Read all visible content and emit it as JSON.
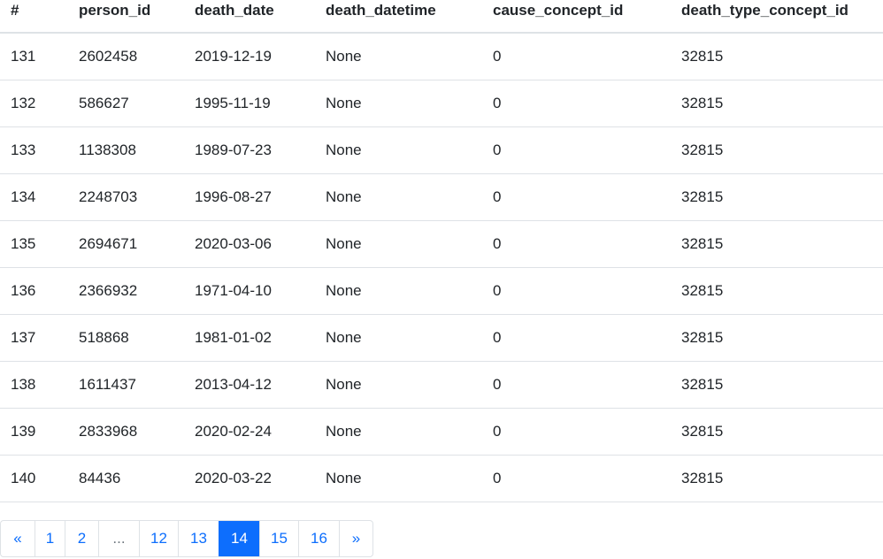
{
  "table": {
    "headers": [
      "#",
      "person_id",
      "death_date",
      "death_datetime",
      "cause_concept_id",
      "death_type_concept_id"
    ],
    "rows": [
      [
        "131",
        "2602458",
        "2019-12-19",
        "None",
        "0",
        "32815"
      ],
      [
        "132",
        "586627",
        "1995-11-19",
        "None",
        "0",
        "32815"
      ],
      [
        "133",
        "1138308",
        "1989-07-23",
        "None",
        "0",
        "32815"
      ],
      [
        "134",
        "2248703",
        "1996-08-27",
        "None",
        "0",
        "32815"
      ],
      [
        "135",
        "2694671",
        "2020-03-06",
        "None",
        "0",
        "32815"
      ],
      [
        "136",
        "2366932",
        "1971-04-10",
        "None",
        "0",
        "32815"
      ],
      [
        "137",
        "518868",
        "1981-01-02",
        "None",
        "0",
        "32815"
      ],
      [
        "138",
        "1611437",
        "2013-04-12",
        "None",
        "0",
        "32815"
      ],
      [
        "139",
        "2833968",
        "2020-02-24",
        "None",
        "0",
        "32815"
      ],
      [
        "140",
        "84436",
        "2020-03-22",
        "None",
        "0",
        "32815"
      ]
    ]
  },
  "pagination": {
    "items": [
      {
        "label": "«",
        "name": "page-first-button",
        "state": "normal"
      },
      {
        "label": "1",
        "name": "page-1-button",
        "state": "normal"
      },
      {
        "label": "2",
        "name": "page-2-button",
        "state": "normal"
      },
      {
        "label": "...",
        "name": "page-ellipsis",
        "state": "disabled"
      },
      {
        "label": "12",
        "name": "page-12-button",
        "state": "normal"
      },
      {
        "label": "13",
        "name": "page-13-button",
        "state": "normal"
      },
      {
        "label": "14",
        "name": "page-14-button",
        "state": "active"
      },
      {
        "label": "15",
        "name": "page-15-button",
        "state": "normal"
      },
      {
        "label": "16",
        "name": "page-16-button",
        "state": "normal"
      },
      {
        "label": "»",
        "name": "page-last-button",
        "state": "normal"
      }
    ],
    "active_color": "#0d6efd"
  }
}
